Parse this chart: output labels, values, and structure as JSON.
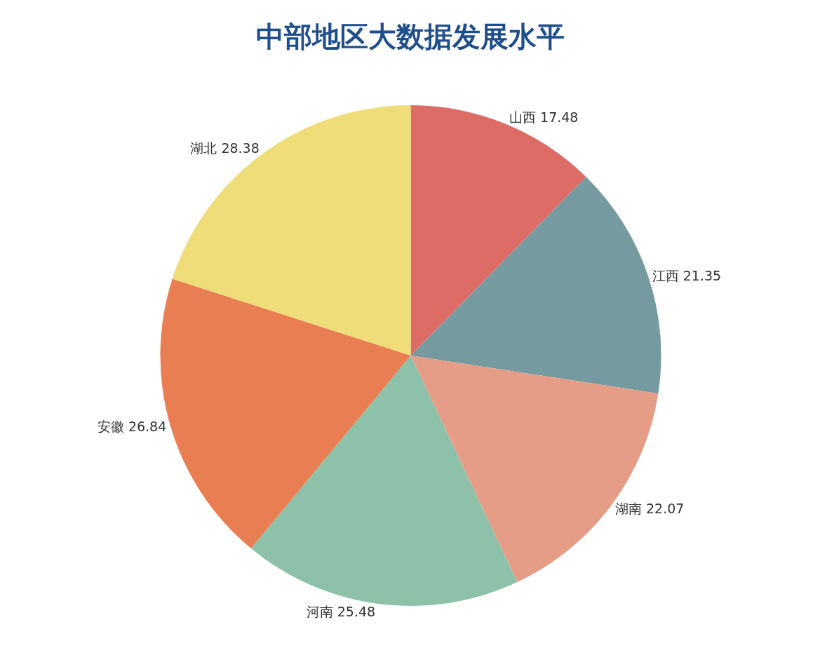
{
  "chart_data": {
    "type": "pie",
    "title": "中部地区大数据发展水平",
    "categories": [
      "山西 17.48",
      "江西 21.35",
      "湖南 22.07",
      "河南 25.48",
      "安徽 26.84",
      "湖北 28.38"
    ],
    "values": [
      17.48,
      21.35,
      22.07,
      25.48,
      26.84,
      28.38
    ],
    "colors": [
      "#dd6b66",
      "#759aa0",
      "#e69d87",
      "#8dc1a9",
      "#ea7e53",
      "#eedd78"
    ]
  }
}
